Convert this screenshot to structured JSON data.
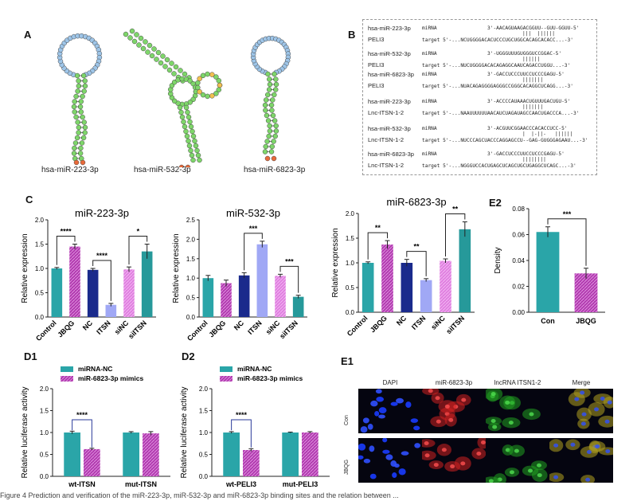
{
  "panels": {
    "A": "A",
    "B": "B",
    "C": "C",
    "E2": "E2",
    "D1": "D1",
    "D2": "D2",
    "E1": "E1"
  },
  "panelA": {
    "captions": [
      "hsa-miR-223-3p",
      "hsa-miR-532-3p",
      "hsa-miR-6823-3p"
    ]
  },
  "panelB": {
    "rows": [
      {
        "mirna_name": "hsa-miR-223-3p",
        "mirna_tag": "miRNA",
        "mirna_seq": "3'-AACAGUAAGACGGUU--GUU-GGUU-5'",
        "pairs": "|||  ||||||",
        "target_name": "PELI3",
        "target_seq": "target 5'-...NCUGGGGACACUCCCUGCUGGCACAGCACACC...-3'"
      },
      {
        "mirna_name": "hsa-miR-532-3p",
        "mirna_tag": "miRNA",
        "mirna_seq": "3'-UGGGUUUGUGGGUCCGGAC-5'",
        "pairs": "||||||",
        "target_name": "PELI3",
        "target_seq": "target 5'-...NUCUGGGGACACAGAGGCAAUCAGACCUGGU...-3'"
      },
      {
        "mirna_name": "hsa-miR-6823-3p",
        "mirna_tag": "miRNA",
        "mirna_seq": "3'-GACCUCCCUUCCUCCCGAGU-5'",
        "pairs": "|||||||",
        "target_name": "PELI3",
        "target_seq": "target 5'-...NUACAGAGGGGAGGGCCGGGCACAGGCUCAGG...-3'"
      },
      {
        "mirna_name": "hsa-miR-223-3p",
        "mirna_tag": "miRNA",
        "mirna_seq": "3'-ACCCCAUAAACUGUUUGACUGU-5'",
        "pairs": "|||||||",
        "target_name": "Lnc-ITSN-1-2",
        "target_seq": "target 5'-...NAAUUUUUUAACAUCUAGAUAGCCAACUGACCCA...-3'"
      },
      {
        "mirna_name": "hsa-miR-532-3p",
        "mirna_tag": "miRNA",
        "mirna_seq": "3'-ACGUUCGGAACCCACACCUCC-5'",
        "pairs": "|  |-||-   ||||||",
        "target_name": "Lnc-ITSN-1-2",
        "target_seq": "target 5'-...NUCCCAGCUACCCAGGAGCCU--GAG-GUGGGAGAAU...-3'"
      },
      {
        "mirna_name": "hsa-miR-6823-3p",
        "mirna_tag": "miRNA",
        "mirna_seq": "3'-GACCUCCCUUCCUCCCGAGU-5'",
        "pairs": "||||||||",
        "target_name": "Lnc-ITSN-1-2",
        "target_seq": "target 5'-...NGGGUCCACUGAGCUCAGCUGCUGAGGCUCAGC...-3'"
      }
    ]
  },
  "chart_data": [
    {
      "id": "c1",
      "type": "bar",
      "title": "miR-223-3p",
      "ylabel": "Relative expression",
      "categories": [
        "Control",
        "JBQG",
        "NC",
        "ITSN",
        "siNC",
        "siITSN"
      ],
      "values": [
        1.0,
        1.45,
        0.97,
        0.25,
        0.98,
        1.35
      ],
      "errors": [
        0.02,
        0.05,
        0.03,
        0.03,
        0.05,
        0.15
      ],
      "ylim": [
        0,
        2.0
      ],
      "yticks": [
        "0.0",
        "0.5",
        "1.0",
        "1.5",
        "2.0"
      ],
      "significance": [
        {
          "from": 0,
          "to": 1,
          "label": "****"
        },
        {
          "from": 2,
          "to": 3,
          "label": "****"
        },
        {
          "from": 4,
          "to": 5,
          "label": "*"
        }
      ]
    },
    {
      "id": "c2",
      "type": "bar",
      "title": "miR-532-3p",
      "ylabel": "Relative expression",
      "categories": [
        "Control",
        "JBQG",
        "NC",
        "ITSN",
        "siNC",
        "siITSN"
      ],
      "values": [
        1.0,
        0.87,
        1.07,
        1.87,
        1.06,
        0.52
      ],
      "errors": [
        0.07,
        0.08,
        0.07,
        0.08,
        0.04,
        0.04
      ],
      "ylim": [
        0,
        2.5
      ],
      "yticks": [
        "0.0",
        "0.5",
        "1.0",
        "1.5",
        "2.0",
        "2.5"
      ],
      "significance": [
        {
          "from": 2,
          "to": 3,
          "label": "***"
        },
        {
          "from": 4,
          "to": 5,
          "label": "***"
        }
      ]
    },
    {
      "id": "c3",
      "type": "bar",
      "title": "miR-6823-3p",
      "ylabel": "Relative expression",
      "categories": [
        "Control",
        "JBQG",
        "NC",
        "ITSN",
        "siNC",
        "siITSN"
      ],
      "values": [
        1.0,
        1.37,
        1.0,
        0.65,
        1.04,
        1.68
      ],
      "errors": [
        0.02,
        0.08,
        0.07,
        0.03,
        0.04,
        0.15
      ],
      "ylim": [
        0,
        2.0
      ],
      "yticks": [
        "0.0",
        "0.5",
        "1.0",
        "1.5",
        "2.0"
      ],
      "significance": [
        {
          "from": 0,
          "to": 1,
          "label": "**"
        },
        {
          "from": 2,
          "to": 3,
          "label": "**"
        },
        {
          "from": 4,
          "to": 5,
          "label": "**"
        }
      ]
    },
    {
      "id": "e2",
      "type": "bar",
      "title": "",
      "ylabel": "Density",
      "categories": [
        "Con",
        "JBQG"
      ],
      "values": [
        0.062,
        0.03
      ],
      "errors": [
        0.004,
        0.004
      ],
      "ylim": [
        0,
        0.08
      ],
      "yticks": [
        "0.00",
        "0.02",
        "0.04",
        "0.06",
        "0.08"
      ],
      "significance": [
        {
          "from": 0,
          "to": 1,
          "label": "***"
        }
      ]
    },
    {
      "id": "d1",
      "type": "bar",
      "title": "",
      "ylabel": "Relative luciferase activity",
      "categories": [
        "wt-ITSN",
        "mut-ITSN"
      ],
      "series": [
        {
          "name": "miRNA-NC",
          "values": [
            1.0,
            1.0
          ],
          "errors": [
            0.03,
            0.02
          ]
        },
        {
          "name": "miR-6823-3p mimics",
          "values": [
            0.62,
            0.98
          ],
          "errors": [
            0.02,
            0.04
          ]
        }
      ],
      "ylim": [
        0,
        2.0
      ],
      "yticks": [
        "0.0",
        "0.5",
        "1.0",
        "1.5",
        "2.0"
      ],
      "significance": [
        {
          "group": 0,
          "label": "****"
        }
      ]
    },
    {
      "id": "d2",
      "type": "bar",
      "title": "",
      "ylabel": "Relative luciferase activity",
      "categories": [
        "wt-PELI3",
        "mut-PELI3"
      ],
      "series": [
        {
          "name": "miRNA-NC",
          "values": [
            1.0,
            1.0
          ],
          "errors": [
            0.02,
            0.01
          ]
        },
        {
          "name": "miR-6823-3p mimics",
          "values": [
            0.6,
            1.0
          ],
          "errors": [
            0.03,
            0.02
          ]
        }
      ],
      "ylim": [
        0,
        2.0
      ],
      "yticks": [
        "0.0",
        "0.5",
        "1.0",
        "1.5",
        "2.0"
      ],
      "significance": [
        {
          "group": 0,
          "label": "****"
        }
      ]
    }
  ],
  "colors": {
    "teal": "#2aa5a8",
    "magenta": "#b23bb0",
    "navy": "#1a2a8c",
    "lavender": "#a0a8f5",
    "pink": "#e080e0",
    "tealdark": "#26999a"
  },
  "panelE1": {
    "columns": [
      "DAPI",
      "miR-6823-3p",
      "lncRNA ITSN1-2",
      "Merge"
    ],
    "rows": [
      "Con",
      "JBQG"
    ]
  },
  "footer": {
    "text": "Figure 4  Prediction and verification of the miR-223-3p, miR-532-3p and miR-6823-3p binding sites and the relation between ..."
  }
}
